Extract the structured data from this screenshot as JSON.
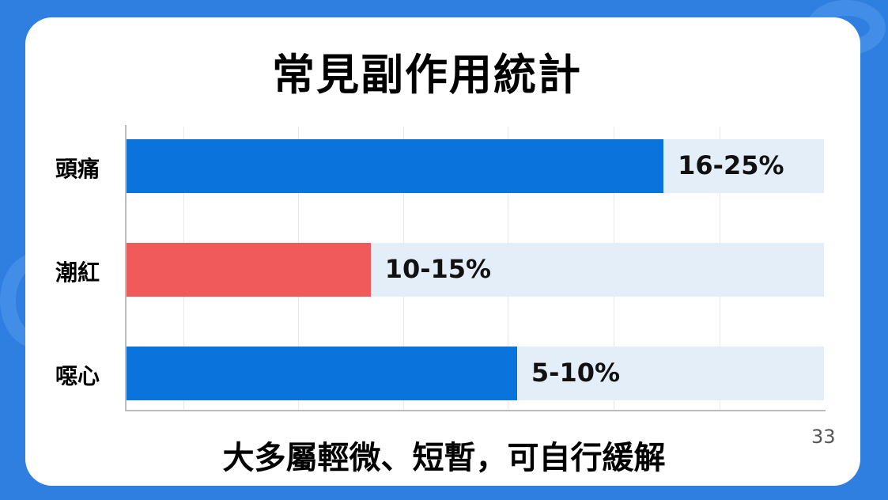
{
  "title": "常見副作用統計",
  "footer": "大多屬輕微、短暫，可自行緩解",
  "page_number": "33",
  "colors": {
    "background": "#2f7fe0",
    "blue_bar": "#0b73dc",
    "red_bar": "#f05a5a",
    "track": "#e4eef9"
  },
  "chart_data": {
    "type": "bar",
    "orientation": "horizontal",
    "title": "常見副作用統計",
    "categories": [
      "頭痛",
      "潮紅",
      "噁心"
    ],
    "labels": [
      "16-25%",
      "10-15%",
      "5-10%"
    ],
    "ranges": [
      [
        16,
        25
      ],
      [
        10,
        15
      ],
      [
        5,
        10
      ]
    ],
    "fill_fraction": [
      0.77,
      0.35,
      0.56
    ],
    "bar_colors": [
      "#0b73dc",
      "#f05a5a",
      "#0b73dc"
    ],
    "grid": true,
    "tick_labels": false
  }
}
